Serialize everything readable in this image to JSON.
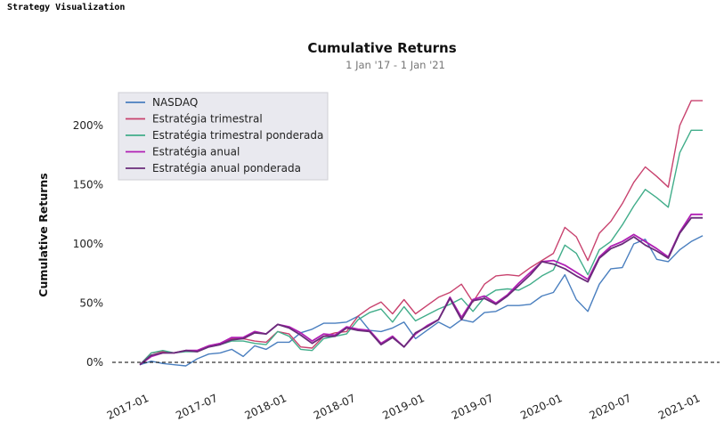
{
  "app": {
    "title": "Strategy Visualization"
  },
  "chart_data": {
    "type": "line",
    "title": "Cumulative Returns",
    "subtitle": "1 Jan '17 -  1 Jan '21",
    "xlabel": "",
    "ylabel": "Cumulative Returns",
    "ylim": [
      -10,
      235
    ],
    "yticks": [
      0,
      50,
      100,
      150,
      200
    ],
    "ytick_labels": [
      "0%",
      "50%",
      "100%",
      "150%",
      "200%"
    ],
    "xticks": [
      "2017-01",
      "2017-07",
      "2018-01",
      "2018-07",
      "2019-01",
      "2019-07",
      "2020-01",
      "2020-07",
      "2021-01"
    ],
    "x": [
      "2016-12",
      "2017-01",
      "2017-02",
      "2017-03",
      "2017-04",
      "2017-05",
      "2017-06",
      "2017-07",
      "2017-08",
      "2017-09",
      "2017-10",
      "2017-11",
      "2017-12",
      "2018-01",
      "2018-02",
      "2018-03",
      "2018-04",
      "2018-05",
      "2018-06",
      "2018-07",
      "2018-08",
      "2018-09",
      "2018-10",
      "2018-11",
      "2018-12",
      "2019-01",
      "2019-02",
      "2019-03",
      "2019-04",
      "2019-05",
      "2019-06",
      "2019-07",
      "2019-08",
      "2019-09",
      "2019-10",
      "2019-11",
      "2019-12",
      "2020-01",
      "2020-02",
      "2020-03",
      "2020-04",
      "2020-05",
      "2020-06",
      "2020-07",
      "2020-08",
      "2020-09",
      "2020-10",
      "2020-11",
      "2020-12",
      "2021-01"
    ],
    "zero_line": true,
    "grid": false,
    "legend_position": "top-left",
    "series": [
      {
        "name": "NASDAQ",
        "color": "#4a7fbf",
        "values": [
          -2,
          1,
          -1,
          -2,
          -3,
          3,
          7,
          8,
          11,
          5,
          14,
          11,
          17,
          17,
          25,
          28,
          33,
          33,
          34,
          39,
          27,
          26,
          29,
          34,
          20,
          27,
          34,
          29,
          36,
          34,
          42,
          43,
          48,
          48,
          49,
          56,
          59,
          74,
          53,
          43,
          66,
          79,
          80,
          100,
          104,
          87,
          85,
          95,
          102,
          107
        ]
      },
      {
        "name": "Estratégia trimestral",
        "color": "#c8426e",
        "values": [
          -2,
          8,
          9,
          8,
          10,
          10,
          14,
          16,
          20,
          20,
          18,
          17,
          26,
          24,
          13,
          12,
          22,
          25,
          26,
          39,
          46,
          51,
          41,
          53,
          41,
          48,
          55,
          59,
          66,
          51,
          66,
          73,
          74,
          73,
          80,
          86,
          92,
          114,
          106,
          86,
          109,
          119,
          134,
          152,
          165,
          157,
          148,
          200,
          221,
          221
        ]
      },
      {
        "name": "Estratégia trimestral ponderada",
        "color": "#41ad8a",
        "values": [
          -2,
          8,
          10,
          8,
          9,
          9,
          13,
          15,
          18,
          18,
          16,
          15,
          26,
          22,
          11,
          10,
          20,
          22,
          24,
          36,
          42,
          45,
          34,
          47,
          35,
          40,
          45,
          49,
          54,
          43,
          55,
          61,
          62,
          61,
          66,
          73,
          78,
          99,
          92,
          74,
          95,
          102,
          116,
          132,
          146,
          139,
          131,
          177,
          196,
          196
        ]
      },
      {
        "name": "Estratégia anual",
        "color": "#b01fb4",
        "values": [
          -2,
          5,
          8,
          8,
          10,
          10,
          14,
          16,
          21,
          21,
          26,
          24,
          32,
          30,
          25,
          18,
          24,
          23,
          30,
          28,
          27,
          16,
          22,
          13,
          24,
          31,
          36,
          55,
          38,
          53,
          56,
          50,
          57,
          67,
          76,
          85,
          86,
          82,
          76,
          70,
          89,
          98,
          102,
          108,
          102,
          96,
          89,
          110,
          125,
          125
        ]
      },
      {
        "name": "Estratégia anual ponderada",
        "color": "#6a2b7a",
        "values": [
          -2,
          6,
          8,
          8,
          10,
          9,
          13,
          15,
          19,
          20,
          25,
          24,
          32,
          29,
          23,
          16,
          22,
          22,
          29,
          27,
          26,
          15,
          21,
          13,
          25,
          30,
          36,
          54,
          36,
          52,
          54,
          49,
          56,
          65,
          74,
          85,
          83,
          79,
          73,
          68,
          88,
          96,
          100,
          106,
          99,
          94,
          88,
          109,
          122,
          122
        ]
      }
    ]
  }
}
